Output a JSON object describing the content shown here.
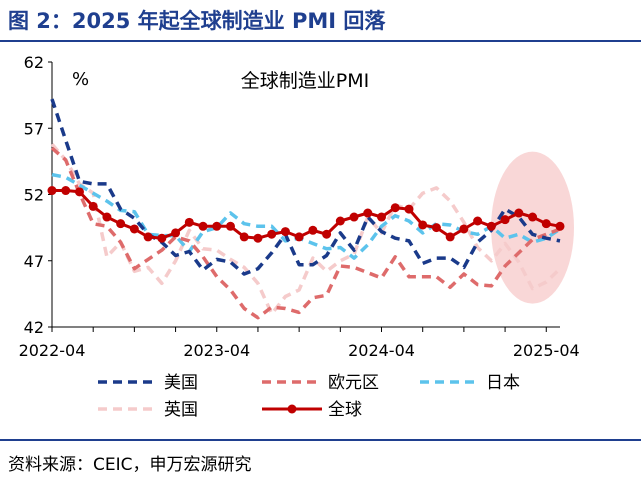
{
  "figure": {
    "title": "图 2：2025 年起全球制造业 PMI 回落",
    "source": "资料来源：CEIC，申万宏源研究"
  },
  "chart_data": {
    "type": "line",
    "title": "全球制造业PMI",
    "ylabel": "%",
    "xlabel": "",
    "ylim": [
      42,
      62
    ],
    "yticks": [
      42,
      47,
      52,
      57,
      62
    ],
    "x_start": "2022-04",
    "x_ticks": [
      "2022-04",
      "2023-04",
      "2024-04",
      "2025-04"
    ],
    "x": [
      "2022-04",
      "2022-05",
      "2022-06",
      "2022-07",
      "2022-08",
      "2022-09",
      "2022-10",
      "2022-11",
      "2022-12",
      "2023-01",
      "2023-02",
      "2023-03",
      "2023-04",
      "2023-05",
      "2023-06",
      "2023-07",
      "2023-08",
      "2023-09",
      "2023-10",
      "2023-11",
      "2023-12",
      "2024-01",
      "2024-02",
      "2024-03",
      "2024-04",
      "2024-05",
      "2024-06",
      "2024-07",
      "2024-08",
      "2024-09",
      "2024-10",
      "2024-11",
      "2024-12",
      "2025-01",
      "2025-02",
      "2025-03",
      "2025-04",
      "2025-05"
    ],
    "legend_position": "bottom",
    "grid": false,
    "highlight": {
      "x_from": "2025-01",
      "x_to": "2025-05",
      "color": "#f4b6b6"
    },
    "series": [
      {
        "name": "美国",
        "color": "#1a3a8a",
        "style": "dash",
        "values": [
          59.2,
          56.1,
          53.0,
          52.8,
          52.8,
          50.9,
          50.2,
          49.0,
          48.4,
          47.4,
          47.7,
          46.3,
          47.1,
          46.9,
          46.0,
          46.4,
          47.6,
          49.0,
          46.7,
          46.7,
          47.4,
          49.1,
          47.8,
          50.3,
          49.2,
          48.7,
          48.5,
          46.8,
          47.2,
          47.2,
          46.5,
          48.4,
          49.3,
          50.9,
          50.3,
          49.0,
          48.7,
          48.5
        ]
      },
      {
        "name": "欧元区",
        "color": "#de6b6b",
        "style": "dash",
        "values": [
          55.5,
          54.6,
          52.1,
          49.8,
          49.6,
          48.4,
          46.4,
          47.1,
          47.8,
          48.8,
          48.5,
          47.3,
          45.8,
          44.8,
          43.4,
          42.7,
          43.5,
          43.4,
          43.1,
          44.2,
          44.4,
          46.6,
          46.5,
          46.1,
          45.7,
          47.3,
          45.8,
          45.8,
          45.8,
          45.0,
          46.0,
          45.2,
          45.1,
          46.6,
          47.6,
          48.6,
          49.0,
          49.4
        ]
      },
      {
        "name": "日本",
        "color": "#5cc3ec",
        "style": "dash",
        "values": [
          53.5,
          53.3,
          52.7,
          52.1,
          51.5,
          50.8,
          50.7,
          49.0,
          48.9,
          48.9,
          47.7,
          49.2,
          49.5,
          50.6,
          49.8,
          49.6,
          49.6,
          48.5,
          48.7,
          48.3,
          47.9,
          48.0,
          47.2,
          48.2,
          49.6,
          50.4,
          50.0,
          49.1,
          49.8,
          49.7,
          49.2,
          49.0,
          49.6,
          48.7,
          49.0,
          48.4,
          48.7,
          49.4
        ]
      },
      {
        "name": "英国",
        "color": "#f5cbcb",
        "style": "dash",
        "values": [
          55.8,
          54.6,
          52.8,
          52.1,
          47.3,
          48.4,
          46.2,
          46.5,
          45.3,
          47.0,
          49.3,
          47.9,
          47.8,
          47.1,
          46.5,
          45.3,
          43.0,
          44.3,
          44.8,
          47.2,
          46.2,
          47.0,
          47.5,
          50.3,
          49.1,
          51.2,
          50.9,
          52.1,
          52.5,
          51.5,
          49.9,
          48.0,
          47.0,
          48.3,
          46.9,
          44.9,
          45.4,
          46.4
        ]
      },
      {
        "name": "全球",
        "color": "#c00000",
        "style": "solid-marker",
        "values": [
          52.3,
          52.3,
          52.2,
          51.1,
          50.3,
          49.8,
          49.4,
          48.8,
          48.7,
          49.1,
          49.9,
          49.6,
          49.6,
          49.6,
          48.8,
          48.7,
          49.0,
          49.2,
          48.8,
          49.3,
          49.0,
          50.0,
          50.3,
          50.6,
          50.3,
          51.0,
          50.9,
          49.7,
          49.5,
          48.8,
          49.4,
          50.0,
          49.6,
          50.1,
          50.6,
          50.3,
          49.8,
          49.6
        ]
      }
    ]
  }
}
